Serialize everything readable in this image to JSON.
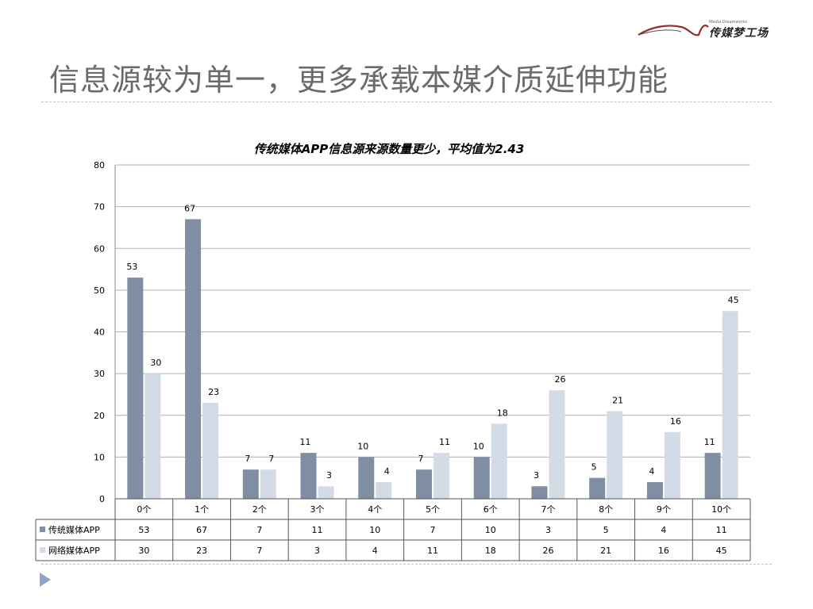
{
  "slide": {
    "title": "信息源较为单一，更多承载本媒介质延伸功能",
    "logo_text": "传媒梦工场",
    "logo_sub": "Media Dreamworks"
  },
  "colors": {
    "dark": "#7f8ea3",
    "light": "#d3dce6",
    "grid": "#b0b0b0"
  },
  "chart_data": {
    "type": "bar",
    "title": "传统媒体APP信息源来源数量更少，平均值为2.43",
    "categories": [
      "0个",
      "1个",
      "2个",
      "3个",
      "4个",
      "5个",
      "6个",
      "7个",
      "8个",
      "9个",
      "10个"
    ],
    "series": [
      {
        "name": "传统媒体APP",
        "color": "#7f8ea3",
        "values": [
          53,
          67,
          7,
          11,
          10,
          7,
          10,
          3,
          5,
          4,
          11
        ]
      },
      {
        "name": "网络媒体APP",
        "color": "#d3dce6",
        "values": [
          30,
          23,
          7,
          3,
          4,
          11,
          18,
          26,
          21,
          16,
          45
        ]
      }
    ],
    "ylim": [
      0,
      80
    ],
    "yticks": [
      0,
      10,
      20,
      30,
      40,
      50,
      60,
      70,
      80
    ],
    "grid": true,
    "data_table": true
  }
}
